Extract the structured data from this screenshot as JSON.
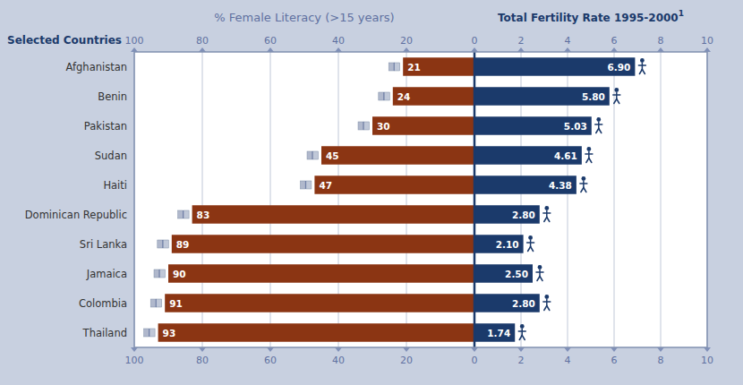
{
  "chart_data": [
    {
      "type": "bar",
      "orientation": "horizontal",
      "title": "% Female Literacy (>15 years)",
      "ylabel": "Selected Countries",
      "categories": [
        "Afghanistan",
        "Benin",
        "Pakistan",
        "Sudan",
        "Haiti",
        "Dominican Republic",
        "Sri Lanka",
        "Jamaica",
        "Colombia",
        "Thailand"
      ],
      "values": [
        21,
        24,
        30,
        45,
        47,
        83,
        89,
        90,
        91,
        93
      ],
      "color": "#8B3513",
      "xlim": [
        100,
        0
      ],
      "xticks": [
        100,
        80,
        60,
        40,
        20,
        0
      ],
      "grid": true,
      "data_labels": true
    },
    {
      "type": "bar",
      "orientation": "horizontal",
      "title": "Total Fertility Rate 1995-2000",
      "annotations": [
        "1"
      ],
      "categories": [
        "Afghanistan",
        "Benin",
        "Pakistan",
        "Sudan",
        "Haiti",
        "Dominican Republic",
        "Sri Lanka",
        "Jamaica",
        "Colombia",
        "Thailand"
      ],
      "values": [
        6.9,
        5.8,
        5.03,
        4.61,
        4.38,
        2.8,
        2.1,
        2.5,
        2.8,
        1.74
      ],
      "value_labels": [
        "6.90",
        "5.80",
        "5.03",
        "4.61",
        "4.38",
        "2.80",
        "2.10",
        "2.50",
        "2.80",
        "1.74"
      ],
      "color": "#1B3A6B",
      "xlim": [
        0,
        10
      ],
      "xticks": [
        2,
        4,
        6,
        8,
        10
      ],
      "grid": true,
      "data_labels": true,
      "tick_labels": "x"
    }
  ]
}
